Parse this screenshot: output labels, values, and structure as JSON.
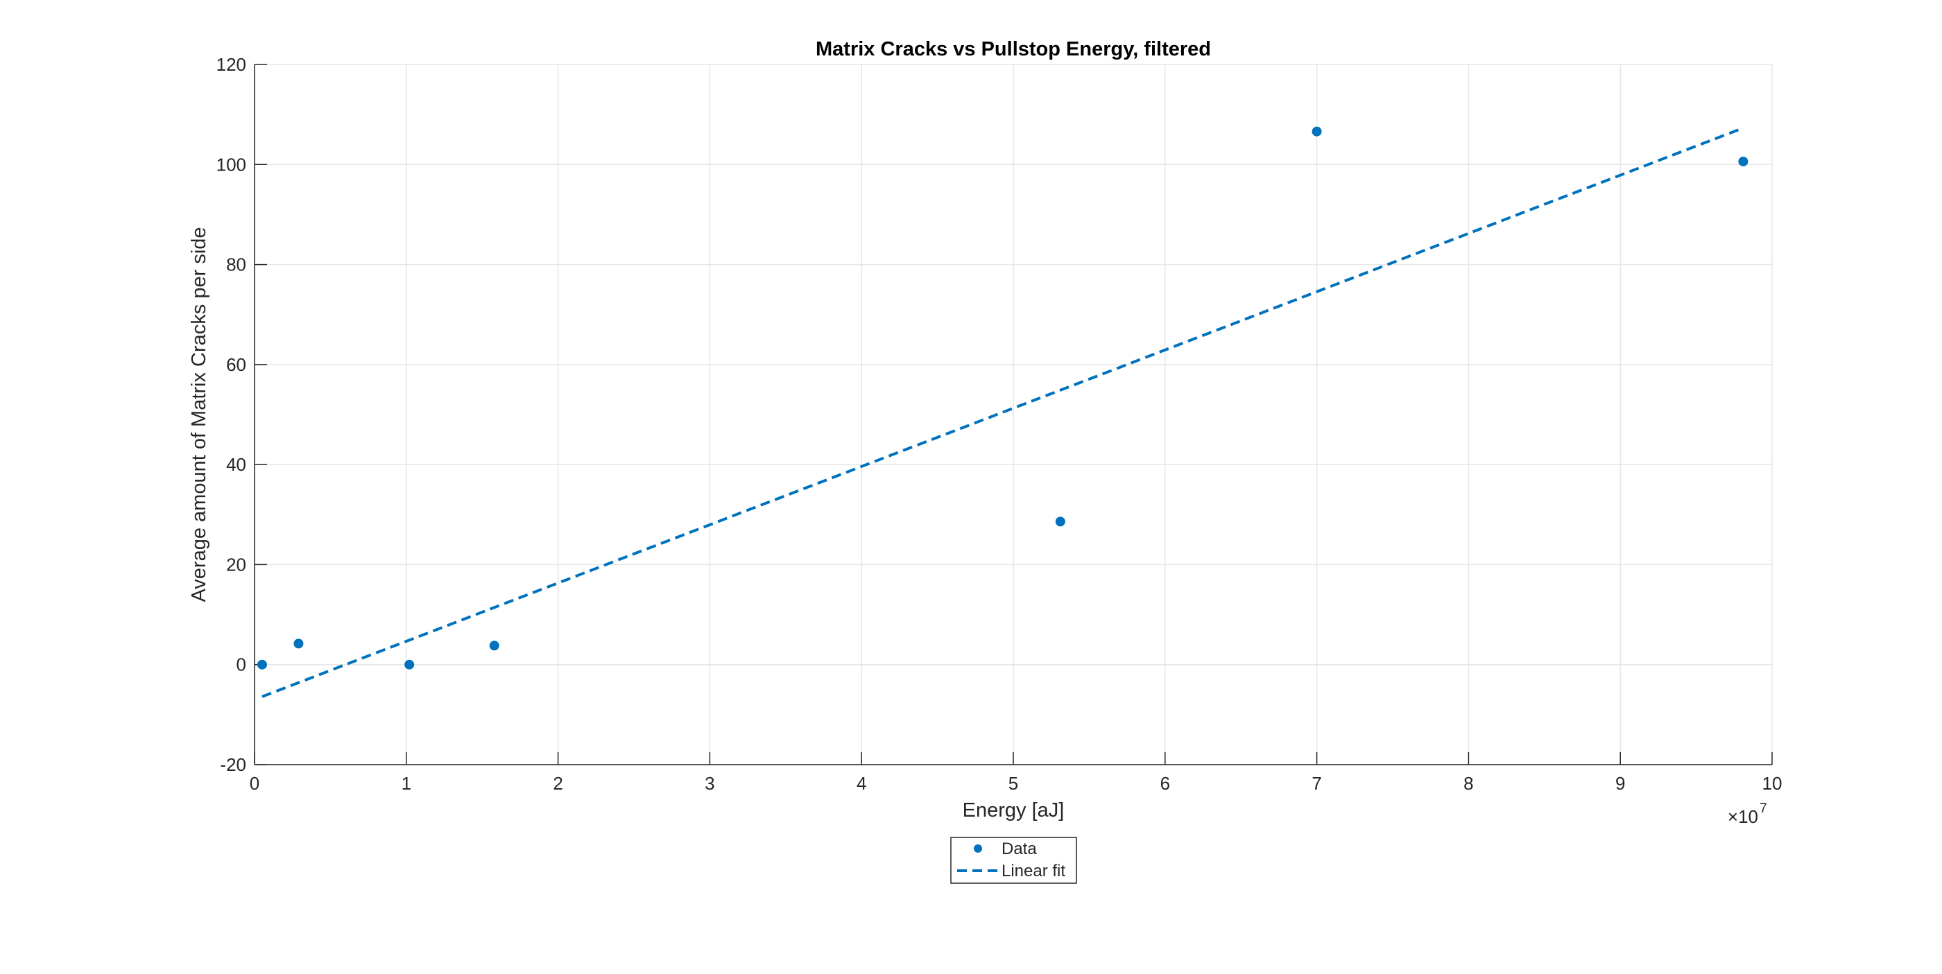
{
  "chart_data": {
    "type": "scatter",
    "title": "Matrix Cracks vs Pullstop Energy, filtered",
    "xlabel": "Energy [aJ]",
    "ylabel": "Average amount of Matrix Cracks per side",
    "x_exponent_base": "×10",
    "x_exponent_power": "7",
    "xlim": [
      0,
      10
    ],
    "ylim": [
      -20,
      120
    ],
    "x_ticks": [
      0,
      1,
      2,
      3,
      4,
      5,
      6,
      7,
      8,
      9,
      10
    ],
    "y_ticks": [
      -20,
      0,
      20,
      40,
      60,
      80,
      100,
      120
    ],
    "x_tick_labels": [
      "0",
      "1",
      "2",
      "3",
      "4",
      "5",
      "6",
      "7",
      "8",
      "9",
      "10"
    ],
    "y_tick_labels": [
      "-20",
      "0",
      "20",
      "40",
      "60",
      "80",
      "100",
      "120"
    ],
    "grid": true,
    "legend_position": "bottom-center, outside",
    "series": [
      {
        "name": "Data",
        "style": "markers",
        "color": "#0072BD",
        "points": [
          {
            "x": 0.05,
            "y": 0
          },
          {
            "x": 0.29,
            "y": 4.2
          },
          {
            "x": 1.02,
            "y": 0
          },
          {
            "x": 1.58,
            "y": 3.8
          },
          {
            "x": 5.31,
            "y": 28.6
          },
          {
            "x": 7.0,
            "y": 106.6
          },
          {
            "x": 9.81,
            "y": 100.6
          }
        ]
      },
      {
        "name": "Linear fit",
        "style": "dashed-line",
        "color": "#0072BD",
        "points": [
          {
            "x": 0.05,
            "y": -6.4
          },
          {
            "x": 9.81,
            "y": 107.3
          }
        ]
      }
    ]
  }
}
